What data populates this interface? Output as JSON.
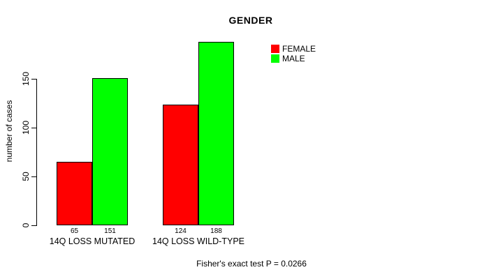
{
  "title": "GENDER",
  "footnote": "Fisher's exact test P = 0.0266",
  "legend": {
    "items": [
      {
        "label": "FEMALE",
        "color": "#FF0000"
      },
      {
        "label": "MALE",
        "color": "#00FF00"
      }
    ]
  },
  "chart_data": {
    "type": "bar",
    "title": "GENDER",
    "categories": [
      "14Q LOSS MUTATED",
      "14Q LOSS WILD-TYPE"
    ],
    "series": [
      {
        "name": "FEMALE",
        "color": "#FF0000",
        "values": [
          65,
          124
        ]
      },
      {
        "name": "MALE",
        "color": "#00FF00",
        "values": [
          151,
          188
        ]
      }
    ],
    "bar_value_labels": [
      [
        65,
        124
      ],
      [
        151,
        188
      ]
    ],
    "xlabel": "",
    "ylabel": "number of cases",
    "ylim": [
      0,
      150
    ],
    "yticks": [
      0,
      50,
      100,
      150
    ],
    "grid": false,
    "bar_border_color": "#000000",
    "legend_position": "top-right",
    "annotation": "Fisher's exact test P = 0.0266"
  }
}
